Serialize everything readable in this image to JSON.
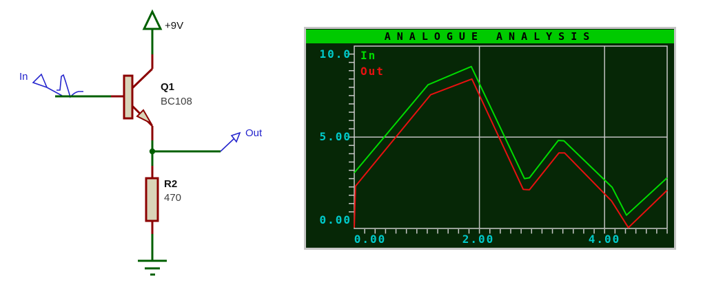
{
  "schematic": {
    "power_rail": "+9V",
    "input_label": "In",
    "output_label": "Out",
    "transistor_ref": "Q1",
    "transistor_value": "BC108",
    "resistor_ref": "R2",
    "resistor_value": "470",
    "colors": {
      "wire_green": "#005F00",
      "pin_maroon": "#8B0000",
      "component_fill": "#D9D4B8",
      "probe_blue": "#2525CD"
    }
  },
  "graph": {
    "colors": {
      "title_bar": "#00CA00",
      "window_bg": "#062706",
      "frame": "#C9C9C9",
      "grid": "#C0C0C0",
      "axis_labels": "#00CACA"
    }
  },
  "chart_data": {
    "type": "line",
    "title": "ANALOGUE ANALYSIS",
    "xlabel": "",
    "ylabel": "",
    "xlim": [
      0,
      5
    ],
    "ylim": [
      -0.5,
      10.48
    ],
    "x_gridlines": [
      2,
      4
    ],
    "y_gridlines": [
      5
    ],
    "x_minor_step": 0.16667,
    "y_minor_step": 0.5,
    "legend_position": "top-left",
    "x_tick_labels": [
      {
        "value": 0,
        "label": "0.00"
      },
      {
        "value": 2,
        "label": "2.00"
      },
      {
        "value": 4,
        "label": "4.00"
      }
    ],
    "y_tick_labels": [
      {
        "value": 10,
        "label": "10.0"
      },
      {
        "value": 5,
        "label": "5.00"
      },
      {
        "value": 0,
        "label": "0.00"
      }
    ],
    "series": [
      {
        "name": "In",
        "color": "#00DC00",
        "points": [
          [
            0,
            2.85
          ],
          [
            1.18,
            8.15
          ],
          [
            1.87,
            9.25
          ],
          [
            2.72,
            2.5
          ],
          [
            2.8,
            2.55
          ],
          [
            3.26,
            4.8
          ],
          [
            3.35,
            4.78
          ],
          [
            4.12,
            1.98
          ],
          [
            4.35,
            0.3
          ],
          [
            5,
            2.55
          ]
        ]
      },
      {
        "name": "Out",
        "color": "#E81010",
        "points": [
          [
            0,
            -0.45
          ],
          [
            0.02,
            2.05
          ],
          [
            1.22,
            7.55
          ],
          [
            1.88,
            8.5
          ],
          [
            2.7,
            1.85
          ],
          [
            2.8,
            1.83
          ],
          [
            3.27,
            4.05
          ],
          [
            3.36,
            4.05
          ],
          [
            4.11,
            1.16
          ],
          [
            4.38,
            -0.45
          ],
          [
            5,
            1.8
          ]
        ]
      }
    ]
  }
}
